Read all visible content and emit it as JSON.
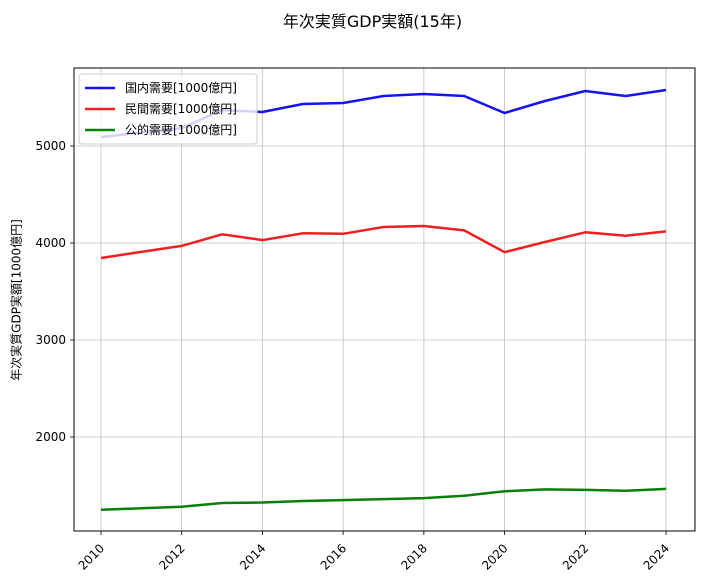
{
  "chart_data": {
    "type": "line",
    "title": "年次実質GDP実額(15年)",
    "xlabel": "",
    "ylabel": "年次実質GDP実額[1000億円]",
    "x": [
      2010,
      2011,
      2012,
      2013,
      2014,
      2015,
      2016,
      2017,
      2018,
      2019,
      2020,
      2021,
      2022,
      2023,
      2024
    ],
    "series": [
      {
        "name": "国内需要[1000億円]",
        "color": "#1414ef",
        "values": [
          5090,
          5140,
          5185,
          5370,
          5350,
          5433,
          5443,
          5515,
          5536,
          5515,
          5340,
          5464,
          5567,
          5515,
          5577
        ]
      },
      {
        "name": "民間需要[1000億円]",
        "color": "#f02020",
        "values": [
          3845,
          3908,
          3970,
          4090,
          4030,
          4100,
          4095,
          4165,
          4175,
          4130,
          3905,
          4010,
          4110,
          4075,
          4120
        ]
      },
      {
        "name": "公的需要[1000億円]",
        "color": "#0a800a",
        "values": [
          1250,
          1265,
          1280,
          1320,
          1325,
          1340,
          1350,
          1360,
          1370,
          1395,
          1440,
          1460,
          1455,
          1445,
          1465
        ]
      }
    ],
    "xticks": [
      2010,
      2012,
      2014,
      2016,
      2018,
      2020,
      2022,
      2024
    ],
    "yticks": [
      2000,
      3000,
      4000,
      5000
    ],
    "xlim": [
      2009.2,
      2024.75
    ],
    "ylim": [
      1030,
      5804
    ],
    "grid": true,
    "legend_position": "upper left"
  }
}
